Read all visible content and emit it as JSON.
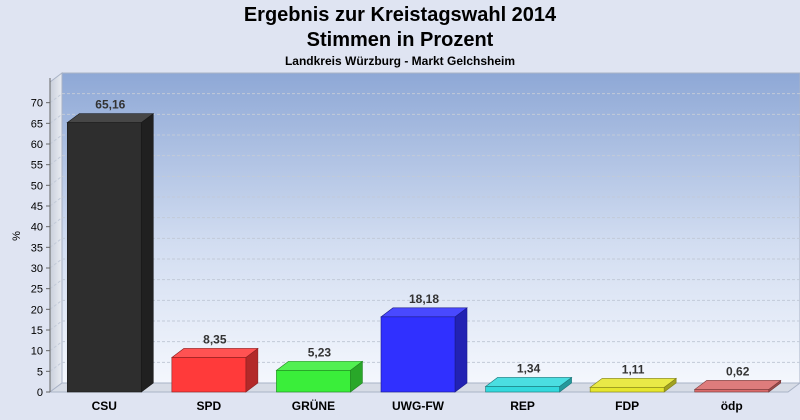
{
  "header": {
    "title_line1": "Ergebnis zur Kreistagswahl 2014",
    "title_line2": "Stimmen in Prozent",
    "subtitle": "Landkreis Würzburg - Markt Gelchsheim"
  },
  "chart_data": {
    "type": "bar",
    "title": "Ergebnis zur Kreistagswahl 2014\nStimmen in Prozent",
    "subtitle": "Landkreis Würzburg - Markt Gelchsheim",
    "xlabel": "",
    "ylabel": "%",
    "ylim": [
      0,
      75
    ],
    "yticks": [
      0,
      5,
      10,
      15,
      20,
      25,
      30,
      35,
      40,
      45,
      50,
      55,
      60,
      65,
      70
    ],
    "grid": true,
    "categories": [
      "CSU",
      "SPD",
      "GRÜNE",
      "UWG-FW",
      "REP",
      "FDP",
      "ödp"
    ],
    "values": [
      65.16,
      8.35,
      5.23,
      18.18,
      1.34,
      1.11,
      0.62
    ],
    "value_labels": [
      "65,16",
      "8,35",
      "5,23",
      "18,18",
      "1,34",
      "1,11",
      "0,62"
    ],
    "colors": [
      "#2e2e2e",
      "#ff3a3a",
      "#3aee3a",
      "#3030ff",
      "#33d9dd",
      "#e6e62e",
      "#d96a6a"
    ]
  }
}
